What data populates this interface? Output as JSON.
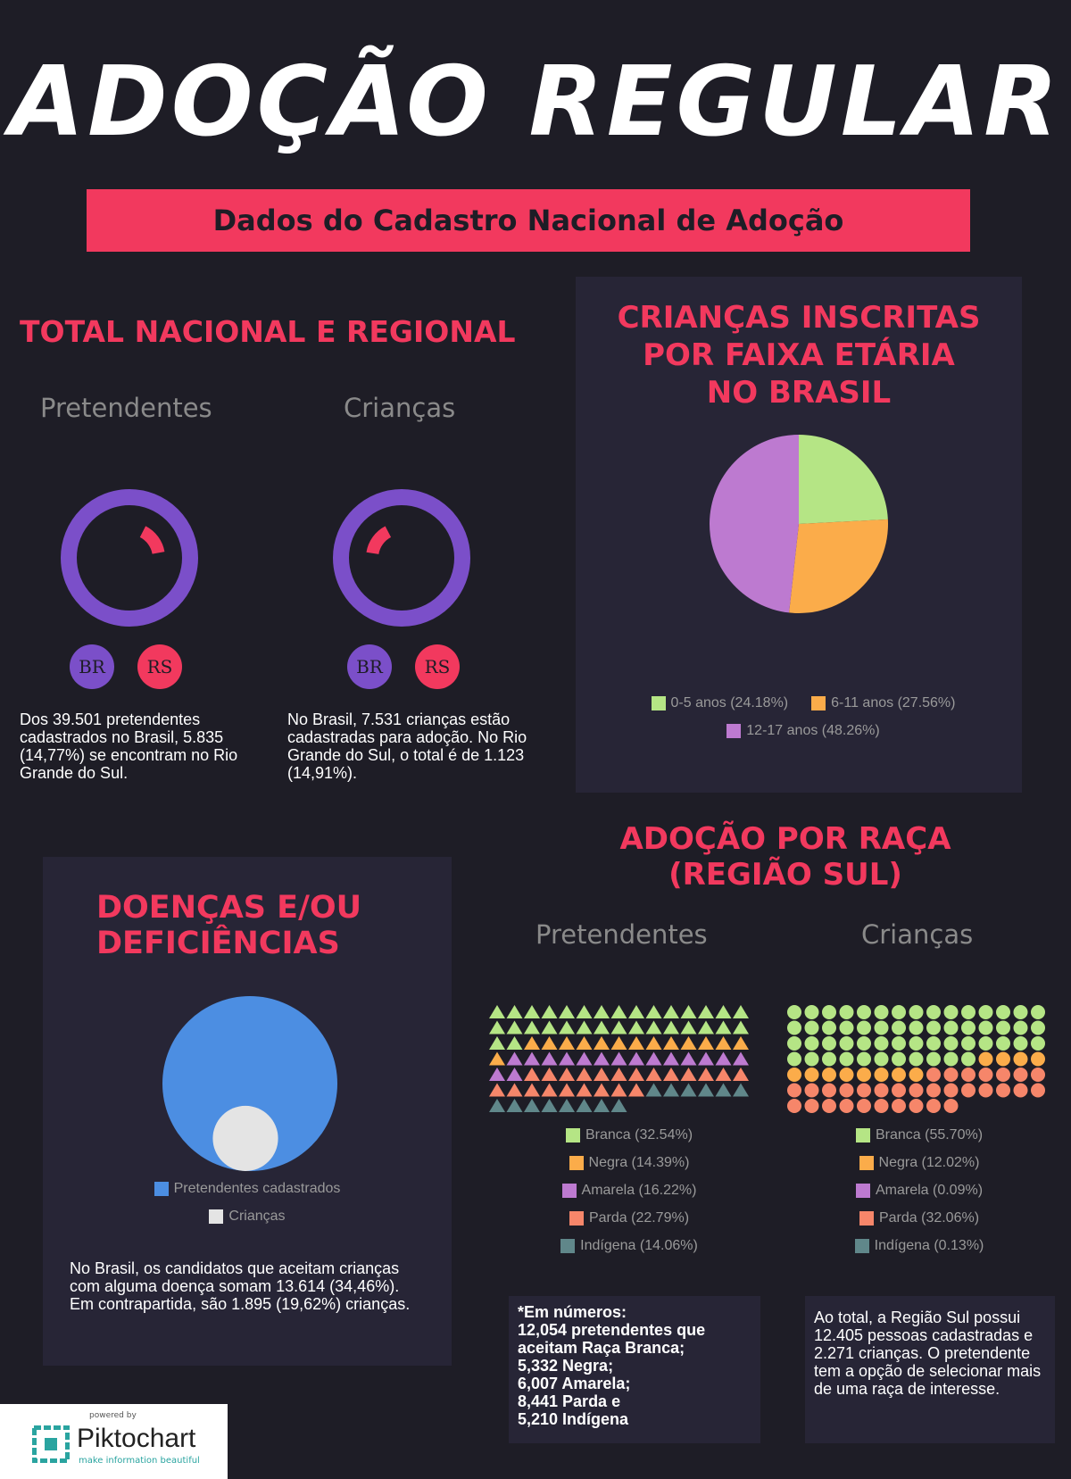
{
  "title": "ADOÇÃO REGULAR",
  "subtitle": "Dados do Cadastro Nacional de Adoção",
  "colors": {
    "accent": "#f2395e",
    "purple": "#7b4fc9",
    "green": "#b5e585",
    "orange": "#fbac4a",
    "violet": "#bd7ad0",
    "salmon": "#f6866a",
    "teal": "#60878a",
    "blue": "#4c8ee2",
    "light": "#e4e4e4"
  },
  "total": {
    "title": "TOTAL NACIONAL E REGIONAL",
    "left_label": "Pretendentes",
    "right_label": "Crianças",
    "badge_br": "BR",
    "badge_rs": "RS",
    "left_text": "Dos 39.501 pretendentes cadastrados no Brasil, 5.835 (14,77%) se encontram no Rio Grande do Sul.",
    "right_text": "No Brasil, 7.531 crianças estão cadastradas para adoção. No Rio Grande do Sul, o total é de 1.123 (14,91%)."
  },
  "faixa": {
    "title_l1": "CRIANÇAS INSCRITAS",
    "title_l2": "POR FAIXA ETÁRIA",
    "title_l3": "NO BRASIL"
  },
  "doencas": {
    "title_l1": "DOENÇAS  E/OU",
    "title_l2": "DEFICIÊNCIAS",
    "text": "No Brasil, os candidatos que aceitam crianças com alguma doença somam 13.614 (34,46%). Em contrapartida, são 1.895 (19,62%) crianças."
  },
  "raca": {
    "title_l1": "ADOÇÃO POR RAÇA",
    "title_l2": "(REGIÃO SUL)",
    "left_label": "Pretendentes",
    "right_label": "Crianças",
    "numbers_text": "*Em números:\n12,054 pretendentes que aceitam Raça Branca;\n 5,332 Negra;\n6,007 Amarela;\n8,441 Parda e\n5,210 Indígena",
    "summary_text": "Ao total, a Região Sul possui 12.405 pessoas cadastradas e 2.271 crianças. O pretendente tem a opção de selecionar mais de uma raça de interesse."
  },
  "footer": {
    "powered": "powered by",
    "brand": "Piktochart",
    "tagline": "make information beautiful"
  },
  "chart_data": [
    {
      "type": "pie",
      "chart": "donut-pretendentes",
      "categories": [
        "BR",
        "RS"
      ],
      "values": [
        39501,
        5835
      ],
      "percent_rs": 14.77
    },
    {
      "type": "pie",
      "chart": "donut-criancas",
      "categories": [
        "BR",
        "RS"
      ],
      "values": [
        7531,
        1123
      ],
      "percent_rs": 14.91
    },
    {
      "type": "pie",
      "chart": "faixa-etaria",
      "categories": [
        "0-5 anos",
        "6-11 anos",
        "12-17 anos"
      ],
      "values": [
        24.18,
        27.56,
        48.26
      ],
      "legend": [
        "0-5 anos (24.18%)",
        "6-11 anos (27.56%)",
        "12-17 anos (48.26%)"
      ],
      "colors": [
        "#b5e585",
        "#fbac4a",
        "#bd7ad0"
      ],
      "legend_position": "bottom"
    },
    {
      "type": "bubble",
      "chart": "doencas",
      "categories": [
        "Pretendentes cadastrados",
        "Crianças"
      ],
      "values": [
        13614,
        1895
      ],
      "colors": [
        "#4c8ee2",
        "#e4e4e4"
      ],
      "legend_position": "bottom"
    },
    {
      "type": "icon-array",
      "chart": "raca-pretendentes",
      "shape": "triangle",
      "categories": [
        "Branca",
        "Negra",
        "Amarela",
        "Parda",
        "Indígena"
      ],
      "values": [
        32.54,
        14.39,
        16.22,
        22.79,
        14.06
      ],
      "legend": [
        "Branca (32.54%)",
        "Negra (14.39%)",
        "Amarela (16.22%)",
        "Parda (22.79%)",
        "Indígena (14.06%)"
      ],
      "colors": [
        "#b5e585",
        "#fbac4a",
        "#bd7ad0",
        "#f6866a",
        "#60878a"
      ],
      "legend_position": "bottom"
    },
    {
      "type": "icon-array",
      "chart": "raca-criancas",
      "shape": "circle",
      "categories": [
        "Branca",
        "Negra",
        "Amarela",
        "Parda",
        "Indígena"
      ],
      "values": [
        55.7,
        12.02,
        0.09,
        32.06,
        0.13
      ],
      "legend": [
        "Branca (55.70%)",
        "Negra (12.02%)",
        "Amarela (0.09%)",
        "Parda (32.06%)",
        "Indígena (0.13%)"
      ],
      "colors": [
        "#b5e585",
        "#fbac4a",
        "#bd7ad0",
        "#f6866a",
        "#60878a"
      ],
      "legend_position": "bottom"
    }
  ]
}
